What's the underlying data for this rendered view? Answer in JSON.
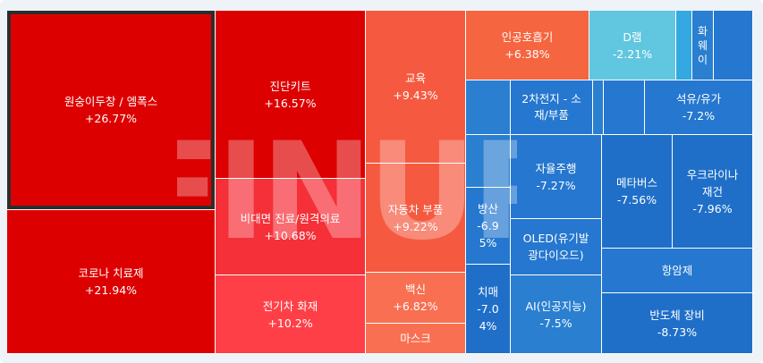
{
  "colors": {
    "red_deep": "#dd0000",
    "red_mid": "#f53038",
    "red_light": "#ff3f47",
    "orange_red": "#f55a40",
    "orange_1": "#f5653f",
    "orange_2": "#f86f51",
    "light_blue": "#61c6e0",
    "sky_blue": "#34a8e0",
    "blue_1": "#2a7fd0",
    "blue_2": "#2577cf",
    "blue_3": "#1f6fc8",
    "watermark": "#ffffff"
  },
  "watermark": {
    "text": "FINUP"
  },
  "cells": [
    {
      "id": "winsuni",
      "name": "원숭이두창 / 엠폭스",
      "change": "+26.77%"
    },
    {
      "id": "diag",
      "name": "진단키트",
      "change": "+16.57%"
    },
    {
      "id": "edu",
      "name": "교육",
      "change": "+9.43%"
    },
    {
      "id": "ai_breath",
      "name": "인공호흡기",
      "change": "+6.38%"
    },
    {
      "id": "dram",
      "name": "D램",
      "change": "-2.21%"
    },
    {
      "id": "huawei",
      "name": "화\n웨\n이",
      "change": ""
    },
    {
      "id": "battery",
      "name": "2차전지 - 소\n재/부품",
      "change": ""
    },
    {
      "id": "oil",
      "name": "석유/유가",
      "change": "-7.2%"
    },
    {
      "id": "corona",
      "name": "코로나 치료제",
      "change": "+21.94%"
    },
    {
      "id": "remote",
      "name": "비대면 진료/원격의료",
      "change": "+10.68%"
    },
    {
      "id": "ev_fire",
      "name": "전기차 화재",
      "change": "+10.2%"
    },
    {
      "id": "auto_parts",
      "name": "자동차 부품",
      "change": "+9.22%"
    },
    {
      "id": "vaccine",
      "name": "백신",
      "change": "+6.82%"
    },
    {
      "id": "mask",
      "name": "마스크",
      "change": ""
    },
    {
      "id": "defense",
      "name": "방산\n-6.9\n5%",
      "change": ""
    },
    {
      "id": "dementia",
      "name": "치매\n-7.0\n4%",
      "change": ""
    },
    {
      "id": "autonomous",
      "name": "자율주행",
      "change": "-7.27%"
    },
    {
      "id": "oled",
      "name": "OLED(유기발\n광다이오드)",
      "change": ""
    },
    {
      "id": "ai",
      "name": "AI(인공지능)",
      "change": "-7.5%"
    },
    {
      "id": "metaverse",
      "name": "메타버스",
      "change": "-7.56%"
    },
    {
      "id": "ukraine",
      "name": "우크라이나\n재건",
      "change": "-7.96%"
    },
    {
      "id": "cancer",
      "name": "항암제",
      "change": ""
    },
    {
      "id": "semi_equip",
      "name": "반도체 장비",
      "change": "-8.73%"
    }
  ]
}
